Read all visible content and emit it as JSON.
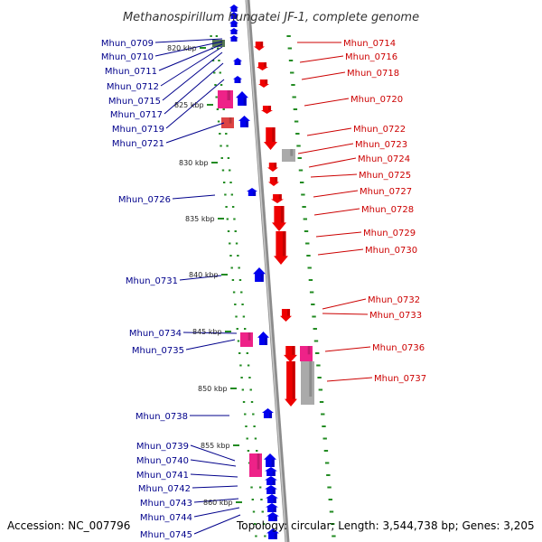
{
  "title": "Methanospirillum hungatei JF-1, complete genome",
  "footer": {
    "accession": "Accession: NC_007796",
    "topology": "Topology: circular; Length: 3,544,738 bp; Genes: 3,205"
  },
  "colors": {
    "backbone": "#8c8c8c",
    "tick": "#228b22",
    "left_label": "#00008b",
    "right_label": "#cc0000",
    "gene_blue": "#0000ee",
    "gene_red": "#ee0000",
    "gene_pink": "#ee2288",
    "gene_gray": "#aaaaaa"
  },
  "ruler_labels": [
    "820 kbp",
    "825 kbp",
    "830 kbp",
    "835 kbp",
    "840 kbp",
    "845 kbp",
    "850 kbp",
    "855 kbp",
    "860 kbp"
  ],
  "left_genes": [
    "Mhun_0709",
    "Mhun_0710",
    "Mhun_0711",
    "Mhun_0712",
    "Mhun_0715",
    "Mhun_0717",
    "Mhun_0719",
    "Mhun_0721",
    "Mhun_0726",
    "Mhun_0731",
    "Mhun_0734",
    "Mhun_0735",
    "Mhun_0738",
    "Mhun_0739",
    "Mhun_0740",
    "Mhun_0741",
    "Mhun_0742",
    "Mhun_0743",
    "Mhun_0744",
    "Mhun_0745"
  ],
  "right_genes": [
    "Mhun_0714",
    "Mhun_0716",
    "Mhun_0718",
    "Mhun_0720",
    "Mhun_0722",
    "Mhun_0723",
    "Mhun_0724",
    "Mhun_0725",
    "Mhun_0727",
    "Mhun_0728",
    "Mhun_0729",
    "Mhun_0730",
    "Mhun_0732",
    "Mhun_0733",
    "Mhun_0736",
    "Mhun_0737"
  ]
}
